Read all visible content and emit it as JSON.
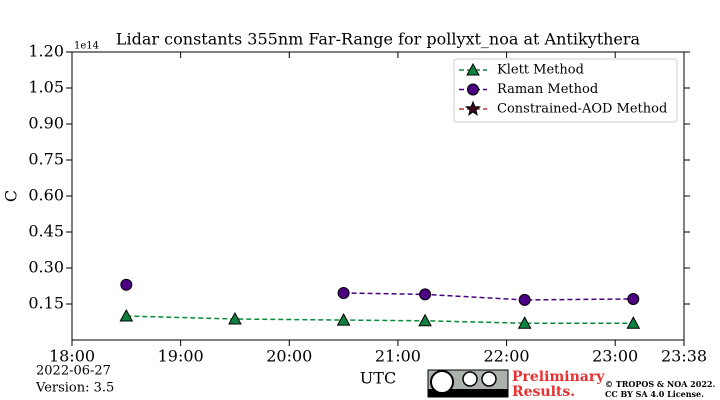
{
  "chart_data": {
    "type": "line",
    "title": "Lidar constants 355nm Far-Range for pollyxt_noa at Antikythera",
    "xlabel": "UTC",
    "ylabel": "C",
    "y_offset_text": "1e14",
    "x": [
      "18:30",
      "19:30",
      "20:30",
      "21:15",
      "22:10",
      "23:10"
    ],
    "xlim": [
      "18:00",
      "23:38"
    ],
    "xticks": [
      "18:00",
      "19:00",
      "20:00",
      "21:00",
      "22:00",
      "23:00",
      "23:38"
    ],
    "ylim": [
      0,
      1.2
    ],
    "yticks": [
      0.15,
      {
        "value": 0.3,
        "label": "0.30"
      },
      0.45,
      {
        "value": 0.6,
        "label": "0.60"
      },
      0.75,
      {
        "value": 0.9,
        "label": "0.90"
      },
      1.05,
      {
        "value": 1.2,
        "label": "1.20"
      }
    ],
    "legend": "upper right",
    "series": [
      {
        "name": "Klett Method",
        "color": "#0e8040",
        "line_color": "#0a8a3a",
        "marker": "triangle",
        "values": [
          0.1,
          0.0875,
          0.083,
          0.08,
          0.07,
          0.07
        ]
      },
      {
        "name": "Raman Method",
        "color": "#4b0082",
        "line_color": "#4b0082",
        "marker": "circle",
        "values": [
          0.23,
          null,
          0.196,
          0.19,
          0.167,
          0.171
        ]
      },
      {
        "name": "Constrained-AOD Method",
        "color": "#3a0a1a",
        "line_color": "#b03a2e",
        "marker": "star",
        "values": [
          null,
          null,
          null,
          null,
          null,
          null
        ]
      }
    ],
    "footer": {
      "date": "2022-06-27",
      "version": "Version: 3.5",
      "notice": [
        "Preliminary",
        "Results."
      ],
      "copyright": [
        "© TROPOS & NOA 2022.",
        "CC BY SA 4.0 License."
      ]
    }
  }
}
